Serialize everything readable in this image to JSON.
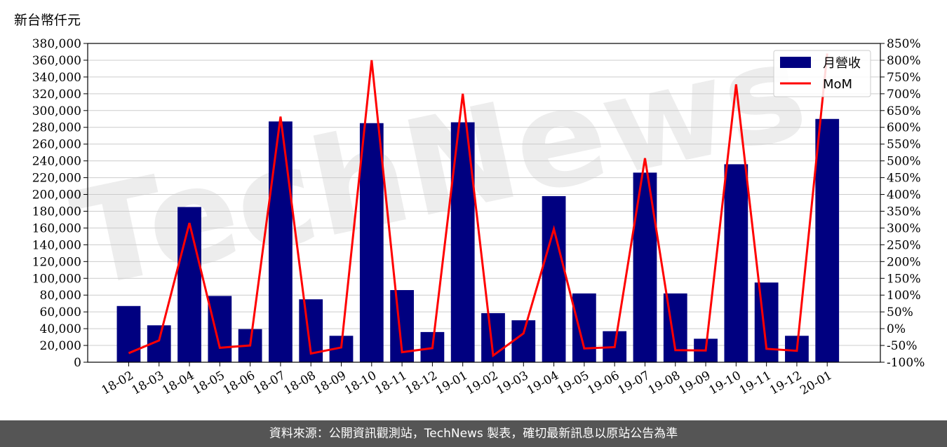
{
  "unit_label": "新台幣仟元",
  "footer_text": "資料來源：公開資訊觀測站，TechNews 製表，確切最新訊息以原站公告為準",
  "watermark": "TechNews",
  "colors": {
    "bar": "#000080",
    "line": "#ff0000",
    "grid": "#cccccc",
    "footer_bg": "#555555"
  },
  "chart_data": {
    "type": "bar",
    "categories": [
      "18-02",
      "18-03",
      "18-04",
      "18-05",
      "18-06",
      "18-07",
      "18-08",
      "18-09",
      "18-10",
      "18-11",
      "18-12",
      "19-01",
      "19-02",
      "19-03",
      "19-04",
      "19-05",
      "19-06",
      "19-07",
      "19-08",
      "19-09",
      "19-10",
      "19-11",
      "19-12",
      "20-01"
    ],
    "series": [
      {
        "name": "月營收",
        "type": "bar",
        "axis": "left",
        "values": [
          67000,
          44000,
          185000,
          79000,
          39500,
          287000,
          75000,
          31500,
          285000,
          86000,
          36000,
          286000,
          58500,
          50000,
          198000,
          82000,
          37000,
          226000,
          82000,
          28000,
          236000,
          95000,
          31500,
          290000
        ]
      },
      {
        "name": "MoM",
        "type": "line",
        "axis": "right",
        "values": [
          -73,
          -35,
          315,
          -57,
          -50,
          632,
          -74,
          -56,
          800,
          -70,
          -58,
          700,
          -80,
          -14,
          297,
          -59,
          -55,
          508,
          -64,
          -65,
          728,
          -60,
          -66,
          820
        ]
      }
    ],
    "y_left": {
      "min": 0,
      "max": 380000,
      "step": 20000
    },
    "y_right": {
      "min": -100,
      "max": 850,
      "step": 50
    },
    "legend_position": "top-right",
    "grid": true
  }
}
